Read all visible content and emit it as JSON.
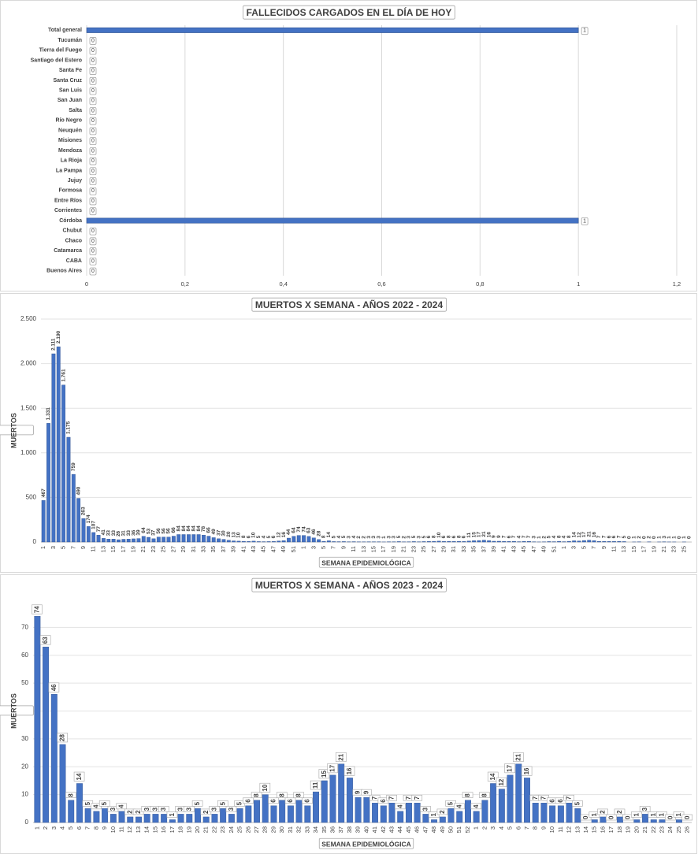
{
  "chart_data": [
    {
      "type": "bar",
      "orientation": "horizontal",
      "title": "FALLECIDOS CARGADOS EN EL DÍA DE HOY",
      "categories": [
        "Total general",
        "Tucumán",
        "Tierra del Fuego",
        "Santiago del Estero",
        "Santa Fe",
        "Santa Cruz",
        "San Luis",
        "San Juan",
        "Salta",
        "Río Negro",
        "Neuquén",
        "Misiones",
        "Mendoza",
        "La Rioja",
        "La Pampa",
        "Jujuy",
        "Formosa",
        "Entre Ríos",
        "Corrientes",
        "Córdoba",
        "Chubut",
        "Chaco",
        "Catamarca",
        "CABA",
        "Buenos Aires"
      ],
      "values": [
        1,
        0,
        0,
        0,
        0,
        0,
        0,
        0,
        0,
        0,
        0,
        0,
        0,
        0,
        0,
        0,
        0,
        0,
        0,
        1,
        0,
        0,
        0,
        0,
        0
      ],
      "color": "#4472c4",
      "xlim": [
        0,
        1.2
      ],
      "xticks": [
        0,
        {
          "value": 0.2,
          "label": "0,2"
        },
        {
          "value": 0.4,
          "label": "0,4"
        },
        {
          "value": 0.6,
          "label": "0,6"
        },
        {
          "value": 0.8,
          "label": "0,8"
        },
        1,
        {
          "value": 1.2,
          "label": "1,2"
        }
      ],
      "grid": true
    },
    {
      "type": "bar",
      "title": "MUERTOS X SEMANA - AÑOS 2022 - 2024",
      "ylabel": "MUERTOS",
      "xlabel": "SEMANA EPIDEMIOLÓGICA",
      "categories": [
        1,
        null,
        3,
        null,
        5,
        null,
        7,
        null,
        9,
        null,
        11,
        null,
        13,
        null,
        15,
        null,
        17,
        null,
        19,
        null,
        21,
        null,
        23,
        null,
        25,
        null,
        27,
        null,
        29,
        null,
        31,
        null,
        33,
        null,
        35,
        null,
        37,
        null,
        39,
        null,
        41,
        null,
        43,
        null,
        45,
        null,
        47,
        null,
        49,
        null,
        51,
        null,
        1,
        null,
        3,
        null,
        5,
        null,
        7,
        null,
        9,
        null,
        11,
        null,
        13,
        null,
        15,
        null,
        17,
        null,
        19,
        null,
        21,
        null,
        23,
        null,
        25,
        null,
        27,
        null,
        29,
        null,
        31,
        null,
        33,
        null,
        35,
        null,
        37,
        null,
        39,
        null,
        41,
        null,
        43,
        null,
        45,
        null,
        47,
        null,
        49,
        null,
        51,
        null,
        1,
        null,
        3,
        null,
        5,
        null,
        7,
        null,
        9,
        null,
        11,
        null,
        13,
        null,
        15,
        null,
        17,
        null,
        19,
        null,
        21,
        null,
        23,
        null,
        25,
        null
      ],
      "values": [
        467,
        1331,
        2111,
        2190,
        1761,
        1175,
        759,
        490,
        263,
        174,
        107,
        77,
        41,
        33,
        33,
        26,
        31,
        33,
        36,
        39,
        64,
        53,
        37,
        56,
        56,
        56,
        66,
        84,
        84,
        84,
        84,
        84,
        78,
        66,
        49,
        37,
        30,
        20,
        13,
        10,
        8,
        6,
        10,
        5,
        4,
        5,
        6,
        12,
        16,
        44,
        64,
        74,
        74,
        63,
        46,
        28,
        8,
        14,
        5,
        4,
        5,
        3,
        4,
        2,
        2,
        3,
        3,
        3,
        1,
        3,
        3,
        5,
        2,
        3,
        5,
        3,
        5,
        6,
        8,
        10,
        6,
        8,
        6,
        8,
        6,
        11,
        15,
        17,
        21,
        16,
        9,
        9,
        7,
        6,
        7,
        4,
        7,
        7,
        3,
        1,
        2,
        5,
        4,
        8,
        4,
        8,
        14,
        12,
        17,
        21,
        16,
        7,
        7,
        6,
        6,
        7,
        5,
        0,
        1,
        2,
        0,
        2,
        0,
        1,
        3,
        1,
        1,
        0,
        1,
        0
      ],
      "value_labels": [
        "467",
        "1.331",
        "2.111",
        "2.190",
        "1.761",
        "1.175",
        "759",
        "490",
        "263",
        "174",
        "107",
        "77",
        "41",
        "33",
        "33",
        "26",
        "31",
        "33",
        "36",
        "39",
        "64",
        "53",
        "37",
        "56",
        "56",
        "56",
        "66",
        "84",
        "84",
        "84",
        "84",
        "84",
        "78",
        "66",
        "49",
        "37",
        "30",
        "20",
        "13",
        "10",
        "8",
        "6",
        "10",
        "5",
        "4",
        "5",
        "6",
        "12",
        "16",
        "44",
        "64",
        "74",
        "74",
        "63",
        "46",
        "28",
        "8",
        "14",
        "5",
        "4",
        "5",
        "3",
        "4",
        "2",
        "2",
        "3",
        "3",
        "3",
        "1",
        "3",
        "3",
        "5",
        "2",
        "3",
        "5",
        "3",
        "5",
        "6",
        "8",
        "10",
        "6",
        "8",
        "6",
        "8",
        "6",
        "11",
        "15",
        "17",
        "21",
        "16",
        "9",
        "9",
        "7",
        "6",
        "7",
        "4",
        "7",
        "7",
        "3",
        "1",
        "2",
        "5",
        "4",
        "8",
        "4",
        "8",
        "14",
        "12",
        "17",
        "21",
        "16",
        "7",
        "7",
        "6",
        "6",
        "7",
        "5",
        "0",
        "1",
        "2",
        "0",
        "2",
        "0",
        "1",
        "3",
        "1",
        "1",
        "0",
        "1",
        "0"
      ],
      "color": "#4472c4",
      "ylim": [
        0,
        2500
      ],
      "yticks": [
        0,
        500,
        {
          "value": 1000,
          "label": "1.000"
        },
        {
          "value": 1500,
          "label": "1.500"
        },
        {
          "value": 2000,
          "label": "2.000"
        },
        {
          "value": 2500,
          "label": "2.500"
        }
      ],
      "grid": true
    },
    {
      "type": "bar",
      "title": "MUERTOS X SEMANA - AÑOS 2023 - 2024",
      "ylabel": "MUERTOS",
      "xlabel": "SEMANA EPIDEMIOLÓGICA",
      "categories": [
        1,
        2,
        3,
        4,
        5,
        6,
        7,
        8,
        9,
        10,
        11,
        12,
        13,
        14,
        15,
        16,
        17,
        18,
        19,
        20,
        21,
        22,
        23,
        24,
        25,
        26,
        27,
        28,
        29,
        30,
        31,
        32,
        33,
        34,
        35,
        36,
        37,
        38,
        39,
        40,
        41,
        42,
        43,
        44,
        45,
        46,
        47,
        48,
        49,
        50,
        51,
        52,
        1,
        2,
        3,
        4,
        5,
        6,
        7,
        8,
        9,
        10,
        11,
        12,
        13,
        14,
        15,
        16,
        17,
        18,
        19,
        20,
        21,
        22,
        23,
        24,
        25,
        26
      ],
      "values": [
        74,
        63,
        46,
        28,
        8,
        14,
        5,
        4,
        5,
        3,
        4,
        2,
        2,
        3,
        3,
        3,
        1,
        3,
        3,
        5,
        2,
        3,
        5,
        3,
        5,
        6,
        8,
        10,
        6,
        8,
        6,
        8,
        6,
        11,
        15,
        17,
        21,
        16,
        9,
        9,
        7,
        6,
        7,
        4,
        7,
        7,
        3,
        1,
        2,
        5,
        4,
        8,
        4,
        8,
        14,
        12,
        17,
        21,
        16,
        7,
        7,
        6,
        6,
        7,
        5,
        0,
        1,
        2,
        0,
        2,
        0,
        1,
        3,
        1,
        1,
        0,
        1,
        0
      ],
      "color": "#4472c4",
      "ylim": [
        0,
        80
      ],
      "yticks": [
        0,
        10,
        20,
        30,
        40,
        50,
        60,
        70
      ],
      "grid": true
    }
  ]
}
